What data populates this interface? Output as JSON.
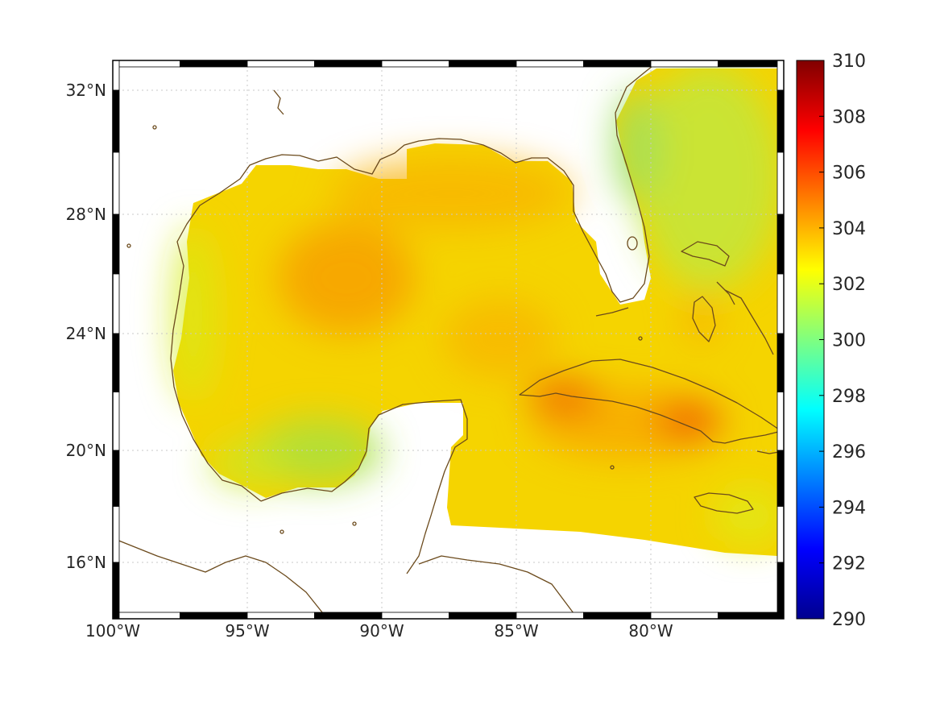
{
  "chart_data": {
    "type": "heatmap",
    "title": "",
    "xlabel": "",
    "ylabel": "",
    "x_range_deg_west": [
      100,
      75
    ],
    "y_range_deg_north": [
      14.8,
      33
    ],
    "x_ticks": [
      {
        "value": -100,
        "label": "100°W"
      },
      {
        "value": -95,
        "label": "95°W"
      },
      {
        "value": -90,
        "label": "90°W"
      },
      {
        "value": -85,
        "label": "85°W"
      },
      {
        "value": -80,
        "label": "80°W"
      }
    ],
    "y_ticks": [
      {
        "value": 16,
        "label": "16°N"
      },
      {
        "value": 20,
        "label": "20°N"
      },
      {
        "value": 24,
        "label": "24°N"
      },
      {
        "value": 28,
        "label": "28°N"
      },
      {
        "value": 32,
        "label": "32°N"
      }
    ],
    "grid": true,
    "colorbar": {
      "position": "right",
      "colormap": "jet",
      "range": [
        290,
        310
      ],
      "ticks": [
        {
          "value": 310,
          "label": "310"
        },
        {
          "value": 308,
          "label": "308"
        },
        {
          "value": 306,
          "label": "306"
        },
        {
          "value": 304,
          "label": "304"
        },
        {
          "value": 302,
          "label": "302"
        },
        {
          "value": 300,
          "label": "300"
        },
        {
          "value": 298,
          "label": "298"
        },
        {
          "value": 296,
          "label": "296"
        },
        {
          "value": 294,
          "label": "294"
        },
        {
          "value": 292,
          "label": "292"
        },
        {
          "value": 290,
          "label": "290"
        }
      ]
    },
    "field_summary": {
      "gulf_interior_typical": 303.5,
      "central_gulf_max": 304.5,
      "yucatan_shelf_min": 300.5,
      "caribbean_typical": 303.5,
      "south_of_cuba_max": 305.5,
      "atlantic_east_of_florida": 301.5
    },
    "colors": {
      "land": "#ffffff",
      "coastline": "#6b4a1c",
      "grid": "#cccccc",
      "frame": "#000000"
    }
  }
}
